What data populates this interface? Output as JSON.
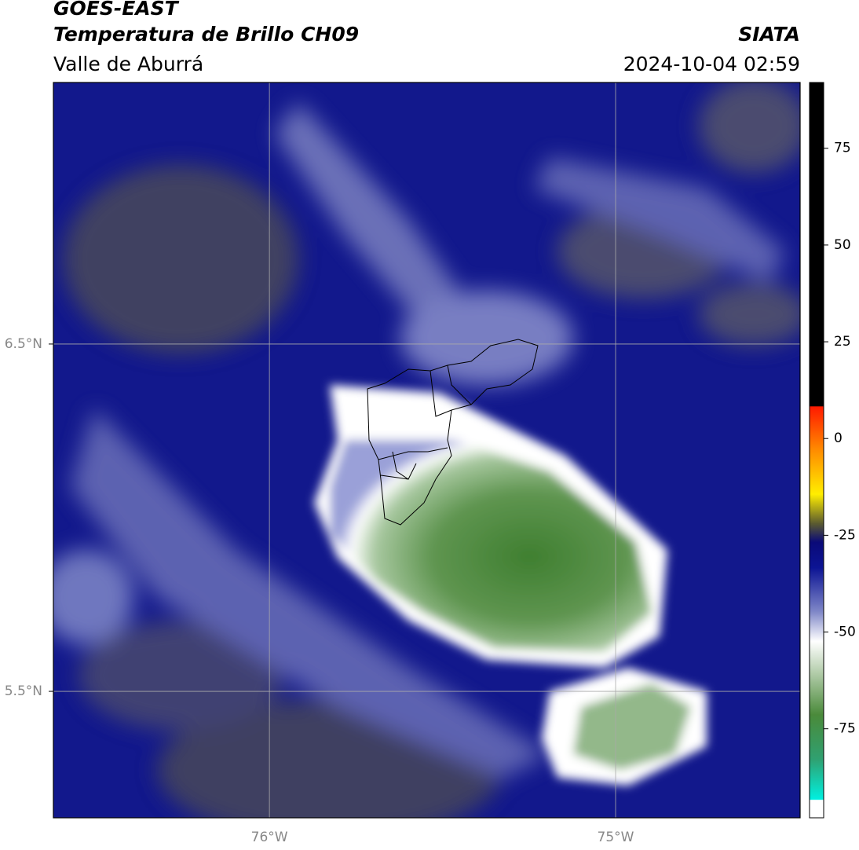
{
  "header": {
    "satellite": "GOES-EAST",
    "product": "Temperatura de Brillo CH09",
    "region": "Valle de Aburrá",
    "agency": "SIATA",
    "datetime": "2024-10-04 02:59"
  },
  "map": {
    "lon_range": [
      -76.624,
      -74.467
    ],
    "lat_range": [
      5.136,
      7.253
    ],
    "lon_ticks": [
      {
        "value": -76,
        "label": "76°W"
      },
      {
        "value": -75,
        "label": "75°W"
      }
    ],
    "lat_ticks": [
      {
        "value": 6.5,
        "label": "6.5°N"
      },
      {
        "value": 5.5,
        "label": "5.5°N"
      }
    ]
  },
  "colorbar": {
    "range": [
      -98,
      92
    ],
    "ticks": [
      75,
      50,
      25,
      0,
      -25,
      -50,
      -75
    ]
  }
}
